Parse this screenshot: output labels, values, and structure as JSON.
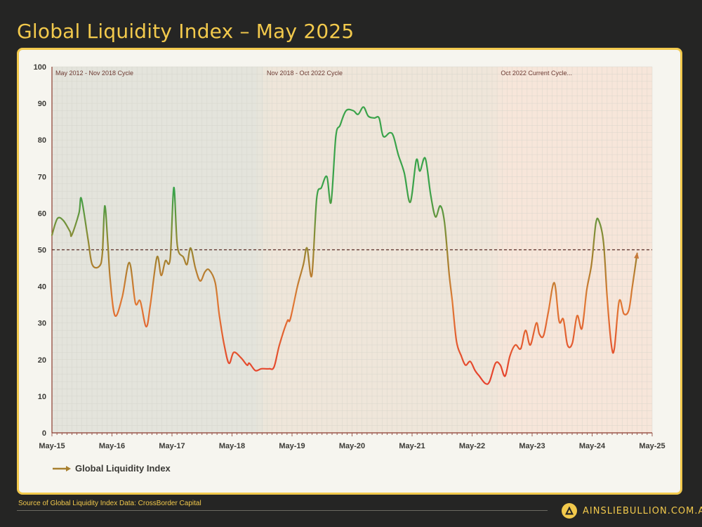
{
  "title": "Global Liquidity Index – May 2025",
  "source": "Source of Global Liquidity Index Data: CrossBorder Capital",
  "brand": {
    "name": "AINSLIEBULLION.COM.AU",
    "logo_icon": "triangle-a-logo-icon"
  },
  "colors": {
    "accent": "#f2c94c",
    "background": "#252524",
    "card": "#f6f5ef",
    "high": "#3aa34a",
    "mid": "#a8802f",
    "low": "#e6412c"
  },
  "chart_data": {
    "type": "line",
    "title": "Global Liquidity Index – May 2025",
    "xlabel": "",
    "ylabel": "",
    "ylim": [
      0,
      100
    ],
    "xlim": [
      2015.33,
      2025.33
    ],
    "yticks": [
      0,
      10,
      20,
      30,
      40,
      50,
      60,
      70,
      80,
      90,
      100
    ],
    "xticks": [
      {
        "label": "May-15",
        "x": 2015.33
      },
      {
        "label": "May-16",
        "x": 2016.33
      },
      {
        "label": "May-17",
        "x": 2017.33
      },
      {
        "label": "May-18",
        "x": 2018.33
      },
      {
        "label": "May-19",
        "x": 2019.33
      },
      {
        "label": "May-20",
        "x": 2020.33
      },
      {
        "label": "May-21",
        "x": 2021.33
      },
      {
        "label": "May-22",
        "x": 2022.33
      },
      {
        "label": "May-23",
        "x": 2023.33
      },
      {
        "label": "May-24",
        "x": 2024.33
      },
      {
        "label": "May-25",
        "x": 2025.33
      }
    ],
    "grid": true,
    "reference_line": {
      "y": 50,
      "style": "dashed"
    },
    "legend": {
      "position": "bottom-left",
      "entries": [
        "Global Liquidity Index"
      ]
    },
    "cycles": [
      {
        "label": "May 2012 - Nov 2018 Cycle",
        "start": 2015.33,
        "end": 2018.85,
        "color": "#e4e4dc"
      },
      {
        "label": "Nov 2018 - Oct 2022 Cycle",
        "start": 2018.85,
        "end": 2022.75,
        "color": "#efe6da"
      },
      {
        "label": "Oct 2022 Current Cycle...",
        "start": 2022.75,
        "end": 2025.33,
        "color": "#f7e6da"
      }
    ],
    "series": [
      {
        "name": "Global Liquidity Index",
        "points": [
          [
            2015.33,
            54
          ],
          [
            2015.42,
            58.5
          ],
          [
            2015.52,
            58
          ],
          [
            2015.63,
            55
          ],
          [
            2015.66,
            54
          ],
          [
            2015.78,
            60
          ],
          [
            2015.82,
            64
          ],
          [
            2015.93,
            53
          ],
          [
            2016.0,
            46
          ],
          [
            2016.12,
            45.5
          ],
          [
            2016.17,
            49
          ],
          [
            2016.21,
            62
          ],
          [
            2016.26,
            52
          ],
          [
            2016.3,
            42
          ],
          [
            2016.38,
            32
          ],
          [
            2016.5,
            37
          ],
          [
            2016.62,
            46.5
          ],
          [
            2016.72,
            35.5
          ],
          [
            2016.8,
            36
          ],
          [
            2016.9,
            29
          ],
          [
            2016.97,
            35
          ],
          [
            2017.08,
            48
          ],
          [
            2017.15,
            43
          ],
          [
            2017.22,
            47
          ],
          [
            2017.3,
            47.5
          ],
          [
            2017.36,
            67
          ],
          [
            2017.42,
            51
          ],
          [
            2017.52,
            48
          ],
          [
            2017.58,
            46
          ],
          [
            2017.64,
            50.5
          ],
          [
            2017.72,
            45
          ],
          [
            2017.8,
            41.5
          ],
          [
            2017.88,
            44
          ],
          [
            2017.95,
            44.5
          ],
          [
            2018.05,
            41
          ],
          [
            2018.12,
            32
          ],
          [
            2018.2,
            24
          ],
          [
            2018.28,
            19
          ],
          [
            2018.36,
            22
          ],
          [
            2018.48,
            20.5
          ],
          [
            2018.58,
            18.5
          ],
          [
            2018.62,
            19
          ],
          [
            2018.72,
            17
          ],
          [
            2018.82,
            17.5
          ],
          [
            2018.95,
            17.5
          ],
          [
            2019.03,
            18
          ],
          [
            2019.12,
            24
          ],
          [
            2019.25,
            30.5
          ],
          [
            2019.3,
            31
          ],
          [
            2019.42,
            40
          ],
          [
            2019.52,
            46
          ],
          [
            2019.58,
            50.5
          ],
          [
            2019.66,
            43
          ],
          [
            2019.74,
            64
          ],
          [
            2019.82,
            67
          ],
          [
            2019.91,
            70
          ],
          [
            2019.98,
            63
          ],
          [
            2020.06,
            81
          ],
          [
            2020.13,
            84
          ],
          [
            2020.23,
            88
          ],
          [
            2020.35,
            88
          ],
          [
            2020.43,
            87
          ],
          [
            2020.52,
            89
          ],
          [
            2020.6,
            86.5
          ],
          [
            2020.7,
            86
          ],
          [
            2020.78,
            86
          ],
          [
            2020.85,
            81
          ],
          [
            2020.96,
            82
          ],
          [
            2021.02,
            81
          ],
          [
            2021.1,
            76
          ],
          [
            2021.2,
            71
          ],
          [
            2021.3,
            63
          ],
          [
            2021.4,
            74.5
          ],
          [
            2021.46,
            71.5
          ],
          [
            2021.55,
            75
          ],
          [
            2021.64,
            65
          ],
          [
            2021.72,
            59
          ],
          [
            2021.8,
            62
          ],
          [
            2021.87,
            57.5
          ],
          [
            2021.95,
            43
          ],
          [
            2022.0,
            36
          ],
          [
            2022.07,
            25
          ],
          [
            2022.15,
            21
          ],
          [
            2022.22,
            18.5
          ],
          [
            2022.3,
            19.5
          ],
          [
            2022.38,
            17
          ],
          [
            2022.45,
            15.5
          ],
          [
            2022.55,
            13.5
          ],
          [
            2022.62,
            14
          ],
          [
            2022.72,
            19
          ],
          [
            2022.8,
            18.5
          ],
          [
            2022.88,
            15.5
          ],
          [
            2022.96,
            21
          ],
          [
            2023.05,
            24
          ],
          [
            2023.14,
            23
          ],
          [
            2023.22,
            28
          ],
          [
            2023.3,
            24
          ],
          [
            2023.4,
            30
          ],
          [
            2023.45,
            27
          ],
          [
            2023.52,
            26.5
          ],
          [
            2023.6,
            33
          ],
          [
            2023.7,
            41
          ],
          [
            2023.78,
            30.5
          ],
          [
            2023.85,
            31
          ],
          [
            2023.92,
            24
          ],
          [
            2024.0,
            24.5
          ],
          [
            2024.08,
            32
          ],
          [
            2024.16,
            28.5
          ],
          [
            2024.24,
            39
          ],
          [
            2024.32,
            46
          ],
          [
            2024.39,
            57
          ],
          [
            2024.44,
            58
          ],
          [
            2024.52,
            52
          ],
          [
            2024.58,
            37
          ],
          [
            2024.65,
            24
          ],
          [
            2024.7,
            23
          ],
          [
            2024.78,
            36
          ],
          [
            2024.86,
            32.5
          ],
          [
            2024.94,
            33.5
          ],
          [
            2025.0,
            40
          ],
          [
            2025.08,
            49
          ]
        ]
      }
    ]
  }
}
